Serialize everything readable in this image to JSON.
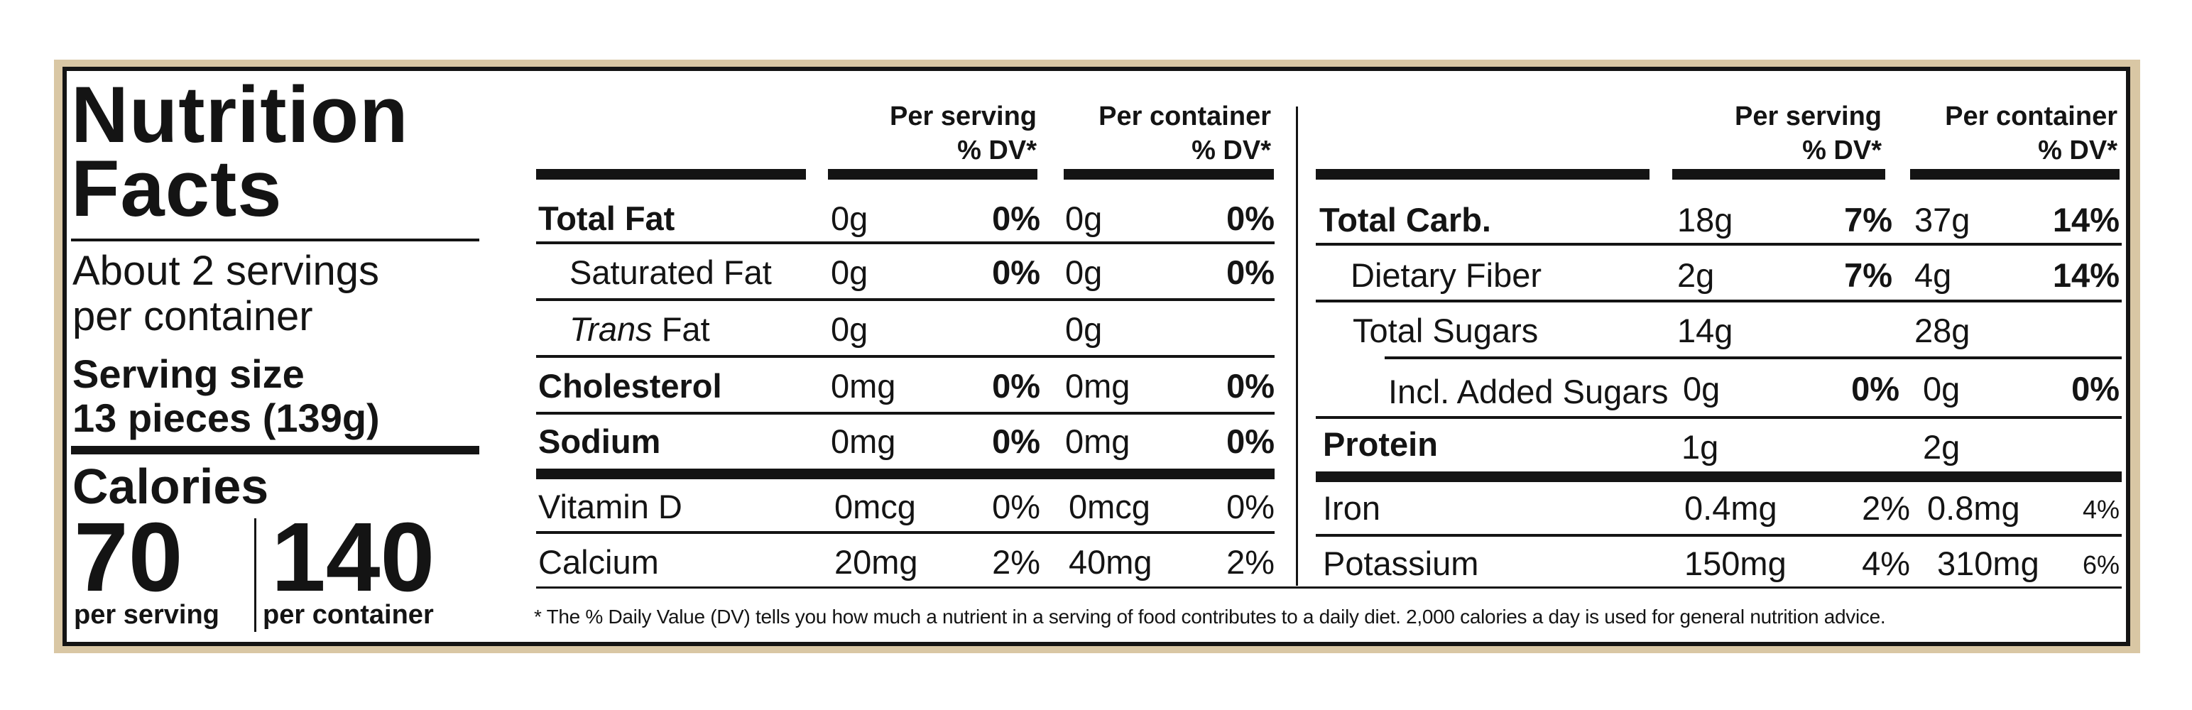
{
  "title": "Nutrition Facts",
  "servings_per_container": "About 2 servings per container",
  "serving_size_label": "Serving size",
  "serving_size_value": "13 pieces (139g)",
  "calories": {
    "label": "Calories",
    "per_serving": "70",
    "per_serving_label": "per serving",
    "per_container": "140",
    "per_container_label": "per container"
  },
  "columns": {
    "per_serving": "Per serving",
    "per_container": "Per container",
    "dv": "% DV*"
  },
  "left_rows": [
    {
      "name": "Total Fat",
      "s_amt": "0g",
      "s_dv": "0%",
      "c_amt": "0g",
      "c_dv": "0%"
    },
    {
      "name": "Saturated Fat",
      "s_amt": "0g",
      "s_dv": "0%",
      "c_amt": "0g",
      "c_dv": "0%"
    },
    {
      "name_italic": "Trans",
      "name": " Fat",
      "s_amt": "0g",
      "s_dv": "",
      "c_amt": "0g",
      "c_dv": ""
    },
    {
      "name": "Cholesterol",
      "s_amt": "0mg",
      "s_dv": "0%",
      "c_amt": "0mg",
      "c_dv": "0%"
    },
    {
      "name": "Sodium",
      "s_amt": "0mg",
      "s_dv": "0%",
      "c_amt": "0mg",
      "c_dv": "0%"
    },
    {
      "name": "Vitamin D",
      "s_amt": "0mcg",
      "s_dv": "0%",
      "c_amt": "0mcg",
      "c_dv": "0%"
    },
    {
      "name": "Calcium",
      "s_amt": "20mg",
      "s_dv": "2%",
      "c_amt": "40mg",
      "c_dv": "2%"
    }
  ],
  "right_rows": [
    {
      "name": "Total Carb.",
      "s_amt": "18g",
      "s_dv": "7%",
      "c_amt": "37g",
      "c_dv": "14%"
    },
    {
      "name": "Dietary  Fiber",
      "s_amt": "2g",
      "s_dv": "7%",
      "c_amt": "4g",
      "c_dv": "14%"
    },
    {
      "name": "Total Sugars",
      "s_amt": "14g",
      "s_dv": "",
      "c_amt": "28g",
      "c_dv": ""
    },
    {
      "name": "Incl. Added Sugars",
      "s_amt": "0g",
      "s_dv": "0%",
      "c_amt": "0g",
      "c_dv": "0%"
    },
    {
      "name": "Protein",
      "s_amt": "1g",
      "s_dv": "",
      "c_amt": "2g",
      "c_dv": ""
    },
    {
      "name": "Iron",
      "s_amt": "0.4mg",
      "s_dv": "2%",
      "c_amt": "0.8mg",
      "c_dv": "4%"
    },
    {
      "name": "Potassium",
      "s_amt": "150mg",
      "s_dv": "4%",
      "c_amt": "310mg",
      "c_dv": "6%"
    }
  ],
  "footnote": "* The % Daily Value (DV) tells you how much a nutrient in a serving of food contributes to a daily diet. 2,000 calories a day is used for general nutrition advice."
}
